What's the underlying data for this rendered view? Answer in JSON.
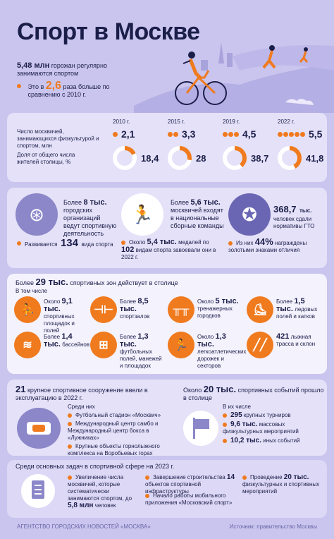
{
  "header": {
    "title": "Спорт в Москве",
    "regular_value": "5,48 млн",
    "regular_text": "горожан регулярно занимаются спортом",
    "growth_prefix": "Это в",
    "growth_value": "2,6",
    "growth_suffix": "раза больше по сравнению с 2010 г."
  },
  "stats": {
    "row1_label": "Число москвичей, занимающихся физкультурой и спортом, млн",
    "row2_label": "Доля от общего числа жителей столицы, %",
    "years": [
      {
        "year": "2010 г.",
        "count": "2,1",
        "share": "18,4",
        "share_value": 18.4,
        "dots": 1
      },
      {
        "year": "2015 г.",
        "count": "3,3",
        "share": "28",
        "share_value": 28,
        "dots": 2
      },
      {
        "year": "2019 г.",
        "count": "4,5",
        "share": "38,7",
        "share_value": 38.7,
        "dots": 3
      },
      {
        "year": "2022 г.",
        "count": "5,5",
        "share": "41,8",
        "share_value": 41.8,
        "dots": 5
      }
    ]
  },
  "orgs": {
    "org_pre": "Более",
    "org_value": "8 тыс.",
    "org_text": "городских организаций ведут спортивную деятельность",
    "sports_pre": "Развивается",
    "sports_value": "134",
    "sports_text": "вида спорта",
    "team_pre": "Более",
    "team_value": "5,6 тыс.",
    "team_text": "москвичей входят в национальные сборные команды",
    "medals_pre": "Около",
    "medals_value": "5,4 тыс.",
    "medals_mid": "медалей по",
    "medals_value2": "102",
    "medals_text": "видам спорта завоевали они в 2022 г.",
    "gto_value": "368,7",
    "gto_unit": "тыс.",
    "gto_text": "человек сдали нормативы ГТО",
    "gold_pre": "Из них",
    "gold_value": "44%",
    "gold_text": "награждены золотыми знаками отличия"
  },
  "zones": {
    "heading_pre": "Более",
    "heading_value": "29 тыс.",
    "heading_text": "спортивных зон действует в столице",
    "sub": "В том числе",
    "items": [
      {
        "pre": "Около",
        "value": "9,1 тыс.",
        "text": "спортивных площадок и полей",
        "icon": "basketball-hoop-icon",
        "glyph": "⛹"
      },
      {
        "pre": "Более",
        "value": "8,5 тыс.",
        "text": "спортзалов",
        "icon": "dumbbell-icon",
        "glyph": "⊣⊢"
      },
      {
        "pre": "Около",
        "value": "5 тыс.",
        "text": "тренажерных городков",
        "icon": "bars-icon",
        "glyph": "╥╥"
      },
      {
        "pre": "Более",
        "value": "1,5 тыс.",
        "text": "ледовых полей и катков",
        "icon": "skate-icon",
        "glyph": "⛸"
      },
      {
        "pre": "Более",
        "value": "1,4 тыс.",
        "text": "бассейнов",
        "icon": "pool-icon",
        "glyph": "≋"
      },
      {
        "pre": "Более",
        "value": "1,3 тыс.",
        "text": "футбольных полей, манежей и площадок",
        "icon": "football-field-icon",
        "glyph": "⊞"
      },
      {
        "pre": "Около",
        "value": "1,3 тыс.",
        "text": "легкоатлетических дорожек и секторов",
        "icon": "runner-icon",
        "glyph": "🏃"
      },
      {
        "pre": "",
        "value": "421",
        "text": "лыжная трасса и склон",
        "icon": "ski-icon",
        "glyph": "╱╱"
      }
    ]
  },
  "facilities": {
    "value": "21",
    "text": "крупное спортивное сооружение ввели в эксплуатацию в 2022 г.",
    "sub": "Среди них",
    "items": [
      "Футбольный стадион «Москвич»",
      "Международный центр самбо и Международный центр бокса в «Лужниках»",
      "Крупные объекты горнолыжного комплекса на Воробьевых горах"
    ]
  },
  "events": {
    "pre": "Около",
    "value": "20 тыс.",
    "text": "спортивных событий прошло в столице",
    "sub": "В их числе",
    "items": [
      {
        "value": "295",
        "text": "крупных турниров"
      },
      {
        "value": "9,6 тыс.",
        "text": "массовых физкультурных мероприятий"
      },
      {
        "value": "10,2 тыс.",
        "text": "иных событий"
      }
    ]
  },
  "tasks": {
    "heading": "Среди основных задач в спортивной сфере на 2023 г.",
    "task1_text": "Увеличение числа москвичей, которые систематически занимаются спортом, до",
    "task1_value": "5,8 млн",
    "task1_suffix": "человек",
    "task2_pre": "Завершение строительства",
    "task2_value": "14",
    "task2_text": "объектов спортивной инфраструктуры",
    "task3_text": "Начало работы мобильного приложения «Московский спорт»",
    "task4_pre": "Проведение",
    "task4_value": "20 тыс.",
    "task4_text": "физкультурных и спортивных мероприятий"
  },
  "footer": {
    "agency": "АГЕНТСТВО ГОРОДСКИХ НОВОСТЕЙ «МОСКВА»",
    "source": "Источник: правительство Москвы"
  },
  "colors": {
    "accent": "#f07a1e",
    "navy": "#1c1e4a",
    "lavender": "#c9c5ee",
    "panel": "#e4e1f8"
  }
}
